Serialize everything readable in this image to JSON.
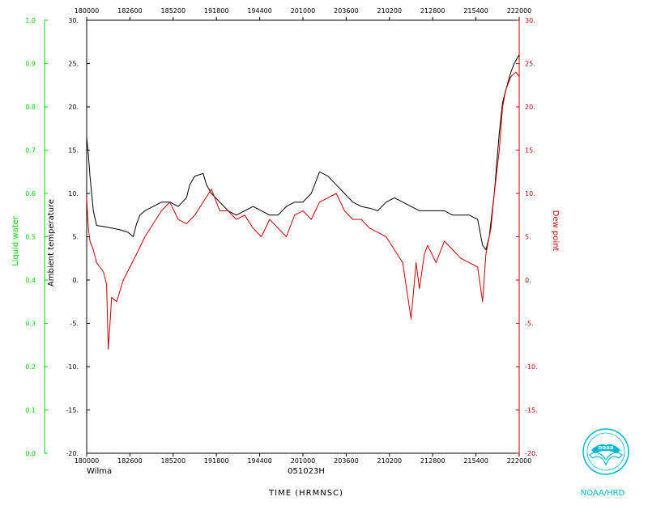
{
  "chart_data": {
    "type": "line",
    "storm_name": "Wilma",
    "flight_id": "051023H",
    "xlabel": "TIME (HRMNSC)",
    "agency": "NOAA/HRD",
    "x_ticks": [
      "180000",
      "182600",
      "185200",
      "191800",
      "194400",
      "201000",
      "203600",
      "210200",
      "212800",
      "215400",
      "222000"
    ],
    "left_axis": {
      "label": "Liquid water",
      "range": [
        0.0,
        1.0
      ],
      "ticks": [
        "0.0",
        "0.1",
        "0.2",
        "0.3",
        "0.4",
        "0.5",
        "0.6",
        "0.7",
        "0.8",
        "0.9",
        "1.0"
      ],
      "color": "#00dd00"
    },
    "inner_left_axis": {
      "label": "Ambient temperature",
      "range": [
        -20,
        30
      ],
      "ticks": [
        "-20.",
        "-15.",
        "-10.",
        "-5.",
        "0.",
        "5.",
        "10.",
        "15.",
        "20.",
        "25.",
        "30."
      ],
      "color": "#000000"
    },
    "right_axis": {
      "label": "Dew point",
      "range": [
        -20,
        30
      ],
      "ticks": [
        "-20.",
        "-15.",
        "-10.",
        "-5.",
        "0.",
        "5.",
        "10.",
        "15.",
        "20.",
        "25.",
        "30."
      ],
      "color": "#cc0000"
    },
    "series": [
      {
        "name": "Ambient temperature",
        "color": "#000000",
        "x_minutes": [
          0,
          1,
          2,
          4,
          6,
          10,
          15,
          20,
          25,
          28,
          30,
          32,
          35,
          40,
          45,
          50,
          55,
          60,
          62,
          65,
          70,
          72,
          75,
          80,
          85,
          90,
          95,
          100,
          105,
          110,
          115,
          120,
          125,
          130,
          135,
          140,
          145,
          150,
          155,
          160,
          165,
          170,
          175,
          180,
          185,
          190,
          195,
          200,
          205,
          210,
          215,
          220,
          225,
          230,
          235,
          238,
          240,
          242,
          245,
          248,
          250,
          252,
          255,
          257,
          260
        ],
        "values": [
          16.5,
          14.5,
          12,
          8,
          6.3,
          6.2,
          6,
          5.8,
          5.5,
          5,
          6.5,
          7.5,
          8,
          8.5,
          9,
          9,
          8.5,
          9.5,
          11,
          12,
          12.3,
          11,
          10,
          9,
          8,
          7.5,
          8,
          8.5,
          8,
          7.5,
          7.5,
          8.5,
          9,
          9,
          10,
          12.5,
          12,
          11,
          10,
          9,
          8.5,
          8.3,
          8,
          9,
          9.5,
          9,
          8.5,
          8,
          8,
          8,
          8,
          7.5,
          7.5,
          7.5,
          7,
          4,
          3.5,
          5,
          10,
          17,
          20.5,
          22,
          24,
          25,
          26
        ]
      },
      {
        "name": "Dew point",
        "color": "#cc0000",
        "x_minutes": [
          0,
          1,
          2,
          4,
          6,
          8,
          10,
          12,
          13,
          14,
          15,
          18,
          22,
          26,
          30,
          35,
          40,
          45,
          50,
          55,
          60,
          65,
          70,
          75,
          80,
          85,
          90,
          95,
          100,
          105,
          110,
          115,
          120,
          125,
          130,
          135,
          140,
          145,
          150,
          155,
          160,
          165,
          170,
          175,
          180,
          185,
          190,
          195,
          198,
          200,
          203,
          205,
          210,
          215,
          220,
          225,
          230,
          235,
          238,
          240,
          243,
          245,
          248,
          250,
          252,
          255,
          258,
          260
        ],
        "values": [
          9.5,
          6,
          4.5,
          3.5,
          2,
          1.5,
          1,
          -0.5,
          -8,
          -5,
          -2,
          -2.5,
          0,
          1.5,
          3,
          5,
          6.5,
          8,
          9,
          7,
          6.5,
          7.5,
          9,
          10.5,
          8,
          8,
          7,
          7.5,
          6,
          5,
          7,
          6,
          5,
          7.5,
          8,
          7,
          9,
          9.5,
          10,
          8,
          7,
          7,
          6,
          5.5,
          5,
          3.5,
          2,
          -4.5,
          2,
          -1,
          3,
          4,
          2,
          4.5,
          3.5,
          2.5,
          2,
          1.5,
          -2.5,
          3,
          6,
          10,
          15,
          20,
          22,
          23.5,
          24,
          23.5
        ]
      }
    ]
  }
}
